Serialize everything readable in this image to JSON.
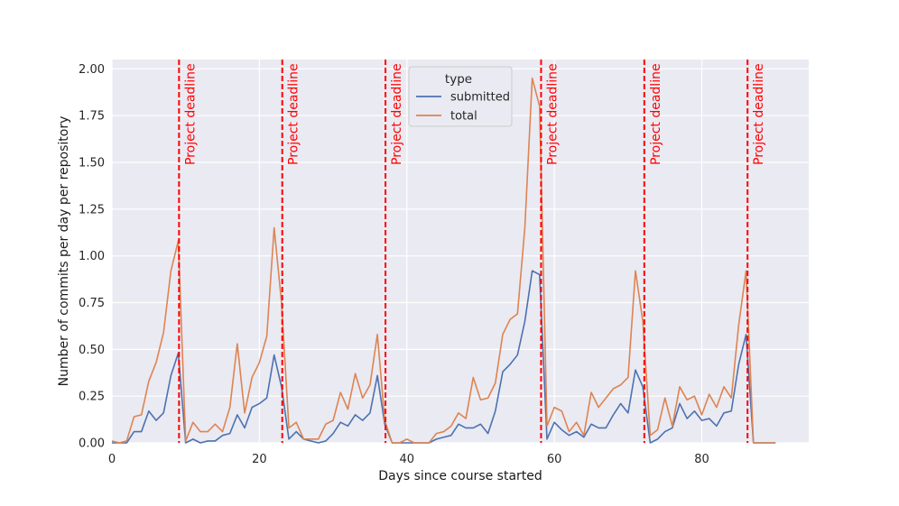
{
  "chart_data": {
    "type": "line",
    "title": "",
    "xlabel": "Days since course started",
    "ylabel": "Number of commits per day per repository",
    "xlim": [
      0,
      94.5
    ],
    "ylim": [
      0,
      2.05
    ],
    "xticks": [
      0,
      20,
      40,
      60,
      80
    ],
    "yticks": [
      "0.00",
      "0.25",
      "0.50",
      "0.75",
      "1.00",
      "1.25",
      "1.50",
      "1.75",
      "2.00"
    ],
    "grid": true,
    "legend": {
      "title": "type",
      "position": "top-center"
    },
    "x": [
      0,
      1,
      2,
      3,
      4,
      5,
      6,
      7,
      8,
      9,
      10,
      11,
      12,
      13,
      14,
      15,
      16,
      17,
      18,
      19,
      20,
      21,
      22,
      23,
      24,
      25,
      26,
      27,
      28,
      29,
      30,
      31,
      32,
      33,
      34,
      35,
      36,
      37,
      38,
      39,
      40,
      41,
      42,
      43,
      44,
      45,
      46,
      47,
      48,
      49,
      50,
      51,
      52,
      53,
      54,
      55,
      56,
      57,
      58,
      59,
      60,
      61,
      62,
      63,
      64,
      65,
      66,
      67,
      68,
      69,
      70,
      71,
      72,
      73,
      74,
      75,
      76,
      77,
      78,
      79,
      80,
      81,
      82,
      83,
      84,
      85,
      86,
      87,
      88,
      89,
      90
    ],
    "series": [
      {
        "name": "submitted",
        "color": "#4c72b0",
        "values": [
          0,
          0,
          0,
          0.06,
          0.06,
          0.17,
          0.12,
          0.16,
          0.36,
          0.48,
          0,
          0.02,
          0,
          0.01,
          0.01,
          0.04,
          0.05,
          0.15,
          0.08,
          0.19,
          0.21,
          0.24,
          0.47,
          0.3,
          0.02,
          0.06,
          0.02,
          0.01,
          0,
          0.01,
          0.05,
          0.11,
          0.09,
          0.15,
          0.12,
          0.16,
          0.36,
          0.1,
          0,
          0,
          0,
          0,
          0,
          0,
          0.02,
          0.03,
          0.04,
          0.1,
          0.08,
          0.08,
          0.1,
          0.05,
          0.17,
          0.38,
          0.42,
          0.47,
          0.65,
          0.92,
          0.9,
          0.02,
          0.11,
          0.07,
          0.04,
          0.06,
          0.03,
          0.1,
          0.08,
          0.08,
          0.15,
          0.21,
          0.16,
          0.39,
          0.3,
          0,
          0.02,
          0.06,
          0.08,
          0.21,
          0.13,
          0.17,
          0.12,
          0.13,
          0.09,
          0.16,
          0.17,
          0.42,
          0.58,
          0,
          0,
          0,
          0
        ]
      },
      {
        "name": "total",
        "color": "#dd8452",
        "values": [
          0.01,
          0,
          0.01,
          0.14,
          0.15,
          0.33,
          0.43,
          0.59,
          0.92,
          1.08,
          0.01,
          0.11,
          0.06,
          0.06,
          0.1,
          0.06,
          0.19,
          0.53,
          0.16,
          0.35,
          0.43,
          0.57,
          1.15,
          0.75,
          0.08,
          0.11,
          0.02,
          0.02,
          0.02,
          0.1,
          0.12,
          0.27,
          0.18,
          0.37,
          0.24,
          0.31,
          0.58,
          0.12,
          0,
          0,
          0.02,
          0,
          0,
          0,
          0.05,
          0.06,
          0.09,
          0.16,
          0.13,
          0.35,
          0.23,
          0.24,
          0.32,
          0.58,
          0.66,
          0.69,
          1.15,
          1.95,
          1.8,
          0.09,
          0.19,
          0.17,
          0.06,
          0.11,
          0.04,
          0.27,
          0.19,
          0.24,
          0.29,
          0.31,
          0.35,
          0.92,
          0.65,
          0.04,
          0.07,
          0.24,
          0.09,
          0.3,
          0.23,
          0.25,
          0.15,
          0.26,
          0.19,
          0.3,
          0.24,
          0.63,
          0.92,
          0,
          0,
          0,
          0
        ]
      }
    ],
    "deadlines": {
      "days": [
        9.1,
        23.1,
        37.1,
        58.2,
        72.2,
        86.2
      ],
      "label": "Project deadline",
      "color": "#ff0000"
    }
  }
}
